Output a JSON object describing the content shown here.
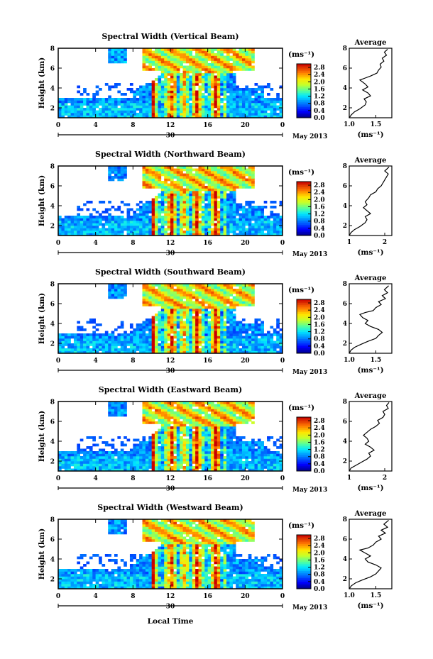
{
  "figure": {
    "xlabel": "Local Time",
    "ylabel": "Height (km)",
    "colorbar_unit": "(ms⁻¹)",
    "average_title": "Average",
    "average_xlabel": "(ms⁻¹)",
    "date_label": "30",
    "month_label": "May 2013"
  },
  "chart_data": [
    {
      "type": "heatmap",
      "title": "Spectral Width (Vertical Beam)",
      "xlabel": "",
      "ylabel": "Height (km)",
      "x_ticks": [
        "0",
        "4",
        "8",
        "12",
        "16",
        "20",
        "0"
      ],
      "xlim": [
        0,
        24
      ],
      "y_ticks": [
        "2",
        "4",
        "6",
        "8"
      ],
      "ylim": [
        1,
        8
      ],
      "colorbar": {
        "ticks": [
          "0.0",
          "0.4",
          "0.8",
          "1.2",
          "1.6",
          "2.0",
          "2.4",
          "2.8"
        ],
        "range": [
          0,
          3
        ]
      },
      "profile": {
        "title": "Average",
        "x_ticks": [
          "1.0",
          "1.5"
        ],
        "xlim": [
          1.0,
          1.8
        ],
        "ylim": [
          1,
          8
        ],
        "points": [
          [
            1.0,
            1.0
          ],
          [
            1.04,
            1.3
          ],
          [
            1.1,
            1.6
          ],
          [
            1.2,
            1.9
          ],
          [
            1.3,
            2.3
          ],
          [
            1.32,
            2.6
          ],
          [
            1.28,
            2.9
          ],
          [
            1.4,
            3.2
          ],
          [
            1.35,
            3.5
          ],
          [
            1.25,
            3.8
          ],
          [
            1.35,
            4.1
          ],
          [
            1.3,
            4.4
          ],
          [
            1.2,
            4.8
          ],
          [
            1.3,
            5.0
          ],
          [
            1.4,
            5.2
          ],
          [
            1.52,
            5.5
          ],
          [
            1.55,
            5.8
          ],
          [
            1.6,
            6.1
          ],
          [
            1.58,
            6.4
          ],
          [
            1.65,
            6.7
          ],
          [
            1.62,
            7.0
          ],
          [
            1.7,
            7.3
          ],
          [
            1.66,
            7.6
          ],
          [
            1.72,
            7.9
          ]
        ]
      }
    },
    {
      "type": "heatmap",
      "title": "Spectral Width (Northward Beam)",
      "xlabel": "",
      "ylabel": "Height (km)",
      "x_ticks": [
        "0",
        "4",
        "8",
        "12",
        "16",
        "20",
        "0"
      ],
      "xlim": [
        0,
        24
      ],
      "y_ticks": [
        "2",
        "4",
        "6",
        "8"
      ],
      "ylim": [
        1,
        8
      ],
      "colorbar": {
        "ticks": [
          "0.0",
          "0.4",
          "0.8",
          "1.2",
          "1.6",
          "2.0",
          "2.4",
          "2.8"
        ],
        "range": [
          0,
          3
        ]
      },
      "profile": {
        "title": "Average",
        "x_ticks": [
          "1",
          "2"
        ],
        "xlim": [
          1,
          2.2
        ],
        "ylim": [
          1,
          8
        ],
        "points": [
          [
            1.0,
            1.0
          ],
          [
            1.05,
            1.3
          ],
          [
            1.15,
            1.6
          ],
          [
            1.3,
            1.9
          ],
          [
            1.45,
            2.3
          ],
          [
            1.5,
            2.6
          ],
          [
            1.45,
            2.9
          ],
          [
            1.6,
            3.2
          ],
          [
            1.5,
            3.5
          ],
          [
            1.4,
            3.8
          ],
          [
            1.5,
            4.1
          ],
          [
            1.45,
            4.4
          ],
          [
            1.55,
            4.8
          ],
          [
            1.6,
            5.1
          ],
          [
            1.75,
            5.4
          ],
          [
            1.8,
            5.7
          ],
          [
            1.9,
            6.0
          ],
          [
            1.95,
            6.3
          ],
          [
            2.0,
            6.6
          ],
          [
            2.05,
            6.9
          ],
          [
            2.1,
            7.2
          ],
          [
            2.0,
            7.5
          ],
          [
            2.12,
            7.9
          ]
        ]
      }
    },
    {
      "type": "heatmap",
      "title": "Spectral Width (Southward Beam)",
      "xlabel": "",
      "ylabel": "Height (km)",
      "x_ticks": [
        "0",
        "4",
        "8",
        "12",
        "16",
        "20",
        "0"
      ],
      "xlim": [
        0,
        24
      ],
      "y_ticks": [
        "2",
        "4",
        "6",
        "8"
      ],
      "ylim": [
        1,
        8
      ],
      "colorbar": {
        "ticks": [
          "0.0",
          "0.4",
          "0.8",
          "1.2",
          "1.6",
          "2.0",
          "2.4",
          "2.8"
        ],
        "range": [
          0,
          3
        ]
      },
      "profile": {
        "title": "Average",
        "x_ticks": [
          "1.0",
          "1.5"
        ],
        "xlim": [
          1.0,
          1.8
        ],
        "ylim": [
          1,
          8
        ],
        "points": [
          [
            1.0,
            1.0
          ],
          [
            1.03,
            1.3
          ],
          [
            1.1,
            1.6
          ],
          [
            1.22,
            1.9
          ],
          [
            1.35,
            2.2
          ],
          [
            1.5,
            2.5
          ],
          [
            1.55,
            2.8
          ],
          [
            1.62,
            3.1
          ],
          [
            1.55,
            3.4
          ],
          [
            1.4,
            3.7
          ],
          [
            1.3,
            4.0
          ],
          [
            1.35,
            4.3
          ],
          [
            1.25,
            4.6
          ],
          [
            1.2,
            4.9
          ],
          [
            1.3,
            5.1
          ],
          [
            1.45,
            5.3
          ],
          [
            1.5,
            5.6
          ],
          [
            1.6,
            5.9
          ],
          [
            1.55,
            6.2
          ],
          [
            1.68,
            6.5
          ],
          [
            1.62,
            6.8
          ],
          [
            1.72,
            7.1
          ],
          [
            1.66,
            7.4
          ],
          [
            1.74,
            7.8
          ]
        ]
      }
    },
    {
      "type": "heatmap",
      "title": "Spectral Width (Eastward Beam)",
      "xlabel": "",
      "ylabel": "Height (km)",
      "x_ticks": [
        "0",
        "4",
        "8",
        "12",
        "16",
        "20",
        "0"
      ],
      "xlim": [
        0,
        24
      ],
      "y_ticks": [
        "2",
        "4",
        "6",
        "8"
      ],
      "ylim": [
        1,
        8
      ],
      "colorbar": {
        "ticks": [
          "0.0",
          "0.4",
          "0.8",
          "1.2",
          "1.6",
          "2.0",
          "2.4",
          "2.8"
        ],
        "range": [
          0,
          3
        ]
      },
      "profile": {
        "title": "Average",
        "x_ticks": [
          "1",
          "2"
        ],
        "xlim": [
          1,
          2.2
        ],
        "ylim": [
          1,
          8
        ],
        "points": [
          [
            1.0,
            1.0
          ],
          [
            1.05,
            1.3
          ],
          [
            1.2,
            1.6
          ],
          [
            1.35,
            1.9
          ],
          [
            1.5,
            2.2
          ],
          [
            1.6,
            2.5
          ],
          [
            1.55,
            2.8
          ],
          [
            1.7,
            3.1
          ],
          [
            1.6,
            3.4
          ],
          [
            1.45,
            3.7
          ],
          [
            1.55,
            4.0
          ],
          [
            1.5,
            4.3
          ],
          [
            1.4,
            4.6
          ],
          [
            1.5,
            4.9
          ],
          [
            1.6,
            5.2
          ],
          [
            1.75,
            5.5
          ],
          [
            1.85,
            5.8
          ],
          [
            1.8,
            6.1
          ],
          [
            1.95,
            6.4
          ],
          [
            2.0,
            6.7
          ],
          [
            1.95,
            7.0
          ],
          [
            2.1,
            7.3
          ],
          [
            2.05,
            7.6
          ],
          [
            2.12,
            7.9
          ]
        ]
      }
    },
    {
      "type": "heatmap",
      "title": "Spectral Width (Westward Beam)",
      "xlabel": "Local Time",
      "ylabel": "Height (km)",
      "x_ticks": [
        "0",
        "4",
        "8",
        "12",
        "16",
        "20",
        "0"
      ],
      "xlim": [
        0,
        24
      ],
      "y_ticks": [
        "2",
        "4",
        "6",
        "8"
      ],
      "ylim": [
        1,
        8
      ],
      "colorbar": {
        "ticks": [
          "0.0",
          "0.4",
          "0.8",
          "1.2",
          "1.6",
          "2.0",
          "2.4",
          "2.8"
        ],
        "range": [
          0,
          3
        ]
      },
      "profile": {
        "title": "Average",
        "x_ticks": [
          "1.0",
          "1.5"
        ],
        "xlim": [
          1.0,
          1.8
        ],
        "ylim": [
          1,
          8
        ],
        "points": [
          [
            1.0,
            1.0
          ],
          [
            1.04,
            1.3
          ],
          [
            1.12,
            1.6
          ],
          [
            1.25,
            1.9
          ],
          [
            1.4,
            2.2
          ],
          [
            1.5,
            2.5
          ],
          [
            1.55,
            2.8
          ],
          [
            1.6,
            3.1
          ],
          [
            1.5,
            3.4
          ],
          [
            1.35,
            3.7
          ],
          [
            1.3,
            4.0
          ],
          [
            1.4,
            4.3
          ],
          [
            1.3,
            4.6
          ],
          [
            1.2,
            4.9
          ],
          [
            1.35,
            5.1
          ],
          [
            1.45,
            5.4
          ],
          [
            1.5,
            5.7
          ],
          [
            1.6,
            6.0
          ],
          [
            1.55,
            6.3
          ],
          [
            1.68,
            6.6
          ],
          [
            1.6,
            6.9
          ],
          [
            1.72,
            7.2
          ],
          [
            1.65,
            7.5
          ],
          [
            1.74,
            7.9
          ]
        ]
      }
    }
  ]
}
